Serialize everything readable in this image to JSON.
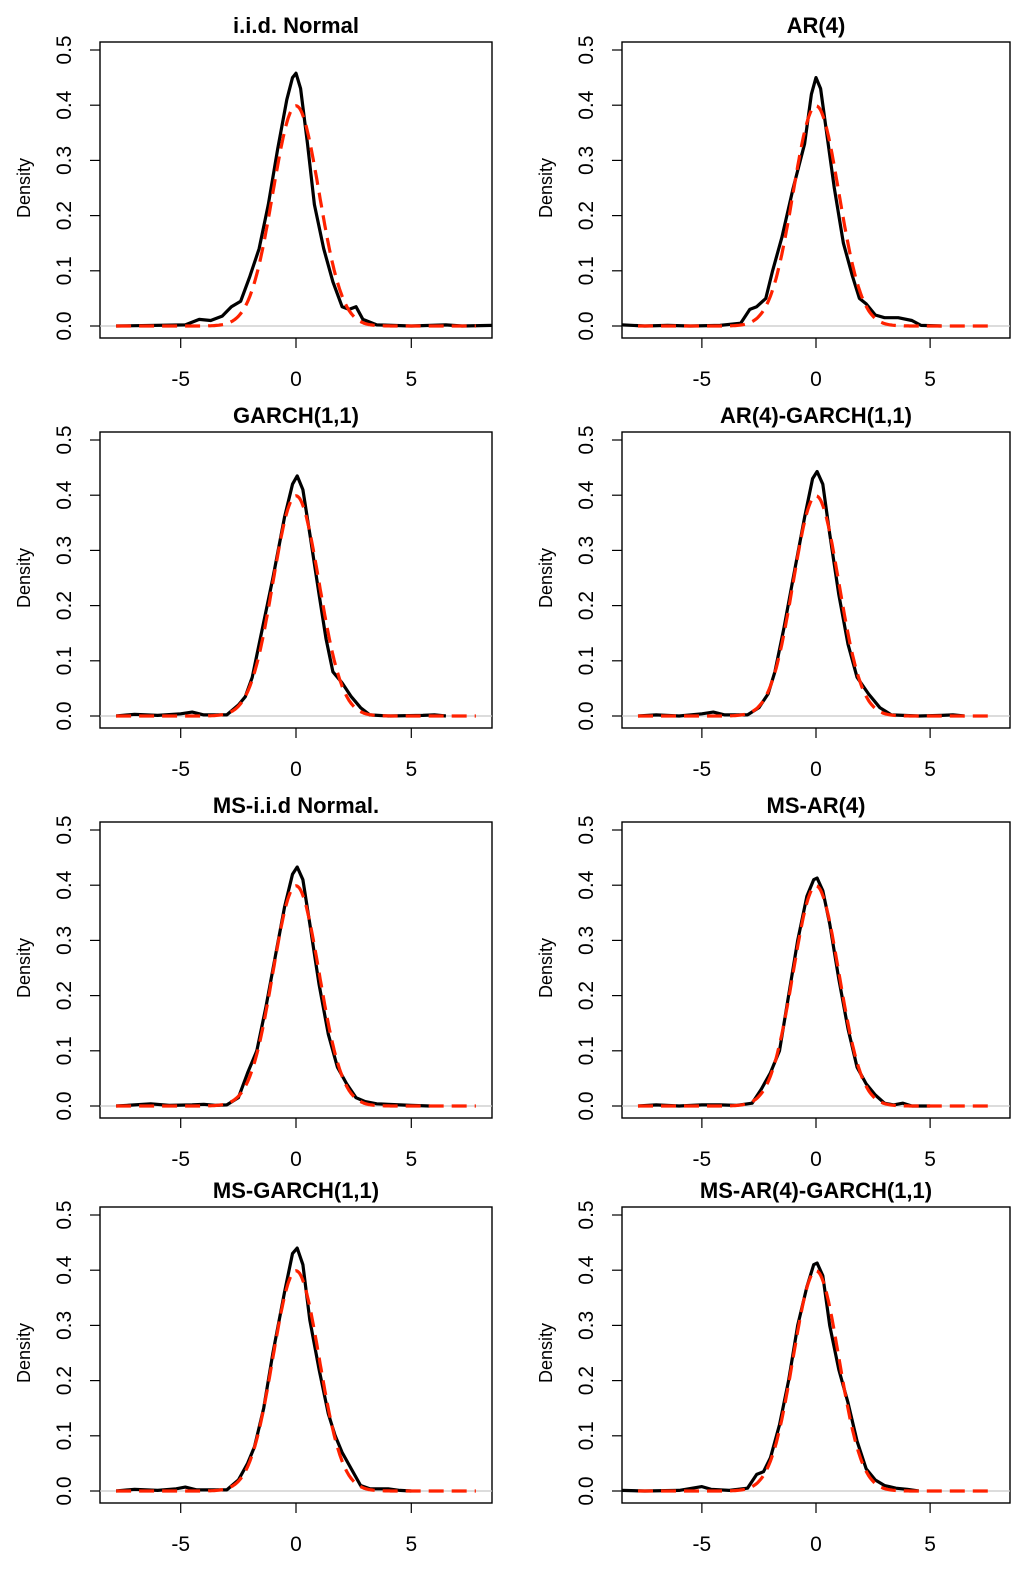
{
  "colors": {
    "kde": "#000000",
    "normal": "#ff2200",
    "zero_line": "#c8c8c8"
  },
  "chart_data": [
    {
      "type": "line",
      "title": "i.i.d. Normal",
      "ylabel": "Density",
      "xlabel": "",
      "xlim": [
        -8.5,
        8.5
      ],
      "ylim": [
        0,
        0.5
      ],
      "xticks": [
        "-5",
        "0",
        "5"
      ],
      "yticks": [
        "0.0",
        "0.1",
        "0.2",
        "0.3",
        "0.4",
        "0.5"
      ],
      "peak": 0.458,
      "series": [
        {
          "role": "kde",
          "points": [
            [
              -7.8,
              0
            ],
            [
              -4.8,
              0.002
            ],
            [
              -4.2,
              0.012
            ],
            [
              -3.7,
              0.01
            ],
            [
              -3.2,
              0.018
            ],
            [
              -2.8,
              0.035
            ],
            [
              -2.4,
              0.045
            ],
            [
              -2.0,
              0.09
            ],
            [
              -1.6,
              0.14
            ],
            [
              -1.2,
              0.22
            ],
            [
              -0.8,
              0.32
            ],
            [
              -0.4,
              0.41
            ],
            [
              -0.15,
              0.45
            ],
            [
              0,
              0.458
            ],
            [
              0.2,
              0.43
            ],
            [
              0.5,
              0.33
            ],
            [
              0.8,
              0.22
            ],
            [
              1.2,
              0.14
            ],
            [
              1.6,
              0.08
            ],
            [
              2.0,
              0.035
            ],
            [
              2.3,
              0.03
            ],
            [
              2.6,
              0.035
            ],
            [
              2.9,
              0.012
            ],
            [
              3.5,
              0.002
            ],
            [
              5.0,
              0
            ],
            [
              6.5,
              0.002
            ],
            [
              7.2,
              0
            ],
            [
              8.5,
              0.001
            ]
          ]
        },
        {
          "role": "normal_reference",
          "mean": 0,
          "sd": 1
        }
      ]
    },
    {
      "type": "line",
      "title": "AR(4)",
      "ylabel": "Density",
      "xlabel": "",
      "xlim": [
        -8.5,
        8.5
      ],
      "ylim": [
        0,
        0.5
      ],
      "xticks": [
        "-5",
        "0",
        "5"
      ],
      "yticks": [
        "0.0",
        "0.1",
        "0.2",
        "0.3",
        "0.4",
        "0.5"
      ],
      "peak": 0.45,
      "series": [
        {
          "role": "kde",
          "points": [
            [
              -8.5,
              0.002
            ],
            [
              -7.5,
              0
            ],
            [
              -6.5,
              0.001
            ],
            [
              -5.5,
              0
            ],
            [
              -4.2,
              0.001
            ],
            [
              -3.3,
              0.005
            ],
            [
              -2.9,
              0.03
            ],
            [
              -2.6,
              0.035
            ],
            [
              -2.2,
              0.05
            ],
            [
              -1.9,
              0.1
            ],
            [
              -1.5,
              0.16
            ],
            [
              -1.0,
              0.25
            ],
            [
              -0.5,
              0.33
            ],
            [
              -0.2,
              0.42
            ],
            [
              0,
              0.45
            ],
            [
              0.2,
              0.43
            ],
            [
              0.5,
              0.34
            ],
            [
              0.8,
              0.25
            ],
            [
              1.2,
              0.15
            ],
            [
              1.6,
              0.09
            ],
            [
              1.9,
              0.05
            ],
            [
              2.2,
              0.04
            ],
            [
              2.6,
              0.02
            ],
            [
              3.0,
              0.015
            ],
            [
              3.6,
              0.015
            ],
            [
              4.2,
              0.01
            ],
            [
              4.6,
              0.001
            ],
            [
              5.5,
              0
            ]
          ]
        },
        {
          "role": "normal_reference",
          "mean": 0,
          "sd": 1
        }
      ]
    },
    {
      "type": "line",
      "title": "GARCH(1,1)",
      "ylabel": "Density",
      "xlabel": "",
      "xlim": [
        -8.5,
        8.5
      ],
      "ylim": [
        0,
        0.5
      ],
      "xticks": [
        "-5",
        "0",
        "5"
      ],
      "yticks": [
        "0.0",
        "0.1",
        "0.2",
        "0.3",
        "0.4",
        "0.5"
      ],
      "peak": 0.435,
      "series": [
        {
          "role": "kde",
          "points": [
            [
              -7.8,
              0
            ],
            [
              -7.0,
              0.003
            ],
            [
              -6.0,
              0.001
            ],
            [
              -5.0,
              0.004
            ],
            [
              -4.5,
              0.007
            ],
            [
              -4.0,
              0.002
            ],
            [
              -3.0,
              0.002
            ],
            [
              -2.5,
              0.02
            ],
            [
              -2.2,
              0.035
            ],
            [
              -1.9,
              0.07
            ],
            [
              -1.5,
              0.15
            ],
            [
              -1.0,
              0.25
            ],
            [
              -0.5,
              0.36
            ],
            [
              -0.15,
              0.42
            ],
            [
              0.05,
              0.435
            ],
            [
              0.3,
              0.41
            ],
            [
              0.6,
              0.33
            ],
            [
              1.0,
              0.22
            ],
            [
              1.3,
              0.14
            ],
            [
              1.6,
              0.08
            ],
            [
              2.0,
              0.06
            ],
            [
              2.4,
              0.035
            ],
            [
              2.8,
              0.015
            ],
            [
              3.2,
              0.002
            ],
            [
              4.0,
              0
            ],
            [
              5.5,
              0.001
            ],
            [
              6.0,
              0.002
            ],
            [
              6.5,
              0
            ]
          ]
        },
        {
          "role": "normal_reference",
          "mean": 0,
          "sd": 1
        }
      ]
    },
    {
      "type": "line",
      "title": "AR(4)-GARCH(1,1)",
      "ylabel": "Density",
      "xlabel": "",
      "xlim": [
        -8.5,
        8.5
      ],
      "ylim": [
        0,
        0.5
      ],
      "xticks": [
        "-5",
        "0",
        "5"
      ],
      "yticks": [
        "0.0",
        "0.1",
        "0.2",
        "0.3",
        "0.4",
        "0.5"
      ],
      "peak": 0.443,
      "series": [
        {
          "role": "kde",
          "points": [
            [
              -7.8,
              0
            ],
            [
              -7.0,
              0.002
            ],
            [
              -6.0,
              0
            ],
            [
              -5.0,
              0.004
            ],
            [
              -4.5,
              0.007
            ],
            [
              -4.0,
              0.002
            ],
            [
              -3.0,
              0.002
            ],
            [
              -2.5,
              0.015
            ],
            [
              -2.1,
              0.04
            ],
            [
              -1.8,
              0.08
            ],
            [
              -1.4,
              0.16
            ],
            [
              -1.0,
              0.25
            ],
            [
              -0.5,
              0.36
            ],
            [
              -0.15,
              0.43
            ],
            [
              0.05,
              0.443
            ],
            [
              0.3,
              0.42
            ],
            [
              0.6,
              0.33
            ],
            [
              1.0,
              0.22
            ],
            [
              1.4,
              0.13
            ],
            [
              1.8,
              0.07
            ],
            [
              2.3,
              0.04
            ],
            [
              2.8,
              0.015
            ],
            [
              3.3,
              0.002
            ],
            [
              4.5,
              0
            ],
            [
              5.5,
              0.001
            ],
            [
              6.0,
              0.002
            ],
            [
              6.5,
              0
            ]
          ]
        },
        {
          "role": "normal_reference",
          "mean": 0,
          "sd": 1
        }
      ]
    },
    {
      "type": "line",
      "title": "MS-i.i.d Normal.",
      "ylabel": "Density",
      "xlabel": "",
      "xlim": [
        -8.5,
        8.5
      ],
      "ylim": [
        0,
        0.5
      ],
      "xticks": [
        "-5",
        "0",
        "5"
      ],
      "yticks": [
        "0.0",
        "0.1",
        "0.2",
        "0.3",
        "0.4",
        "0.5"
      ],
      "peak": 0.433,
      "series": [
        {
          "role": "kde",
          "points": [
            [
              -7.8,
              0
            ],
            [
              -7.0,
              0.002
            ],
            [
              -6.3,
              0.004
            ],
            [
              -5.5,
              0.001
            ],
            [
              -4.5,
              0.002
            ],
            [
              -4.0,
              0.003
            ],
            [
              -3.5,
              0.001
            ],
            [
              -3.0,
              0.002
            ],
            [
              -2.5,
              0.015
            ],
            [
              -2.1,
              0.06
            ],
            [
              -1.7,
              0.1
            ],
            [
              -1.3,
              0.18
            ],
            [
              -0.9,
              0.27
            ],
            [
              -0.5,
              0.36
            ],
            [
              -0.15,
              0.42
            ],
            [
              0.05,
              0.433
            ],
            [
              0.3,
              0.41
            ],
            [
              0.6,
              0.33
            ],
            [
              1.0,
              0.22
            ],
            [
              1.4,
              0.13
            ],
            [
              1.8,
              0.07
            ],
            [
              2.2,
              0.04
            ],
            [
              2.6,
              0.015
            ],
            [
              3.0,
              0.008
            ],
            [
              3.5,
              0.004
            ],
            [
              4.0,
              0.003
            ],
            [
              4.5,
              0.002
            ],
            [
              5.0,
              0.001
            ],
            [
              5.8,
              0
            ]
          ]
        },
        {
          "role": "normal_reference",
          "mean": 0,
          "sd": 1
        }
      ]
    },
    {
      "type": "line",
      "title": "MS-AR(4)",
      "ylabel": "Density",
      "xlabel": "",
      "xlim": [
        -8.5,
        8.5
      ],
      "ylim": [
        0,
        0.5
      ],
      "xticks": [
        "-5",
        "0",
        "5"
      ],
      "yticks": [
        "0.0",
        "0.1",
        "0.2",
        "0.3",
        "0.4",
        "0.5"
      ],
      "peak": 0.413,
      "series": [
        {
          "role": "kde",
          "points": [
            [
              -7.8,
              0
            ],
            [
              -7.0,
              0.002
            ],
            [
              -6.0,
              0
            ],
            [
              -5.0,
              0.002
            ],
            [
              -4.2,
              0.002
            ],
            [
              -3.5,
              0.001
            ],
            [
              -2.8,
              0.005
            ],
            [
              -2.4,
              0.03
            ],
            [
              -2.0,
              0.06
            ],
            [
              -1.6,
              0.1
            ],
            [
              -1.2,
              0.2
            ],
            [
              -0.8,
              0.3
            ],
            [
              -0.4,
              0.38
            ],
            [
              -0.1,
              0.41
            ],
            [
              0.05,
              0.413
            ],
            [
              0.3,
              0.39
            ],
            [
              0.6,
              0.33
            ],
            [
              1.0,
              0.23
            ],
            [
              1.4,
              0.14
            ],
            [
              1.8,
              0.07
            ],
            [
              2.2,
              0.04
            ],
            [
              2.6,
              0.02
            ],
            [
              3.0,
              0.005
            ],
            [
              3.4,
              0.002
            ],
            [
              3.8,
              0.005
            ],
            [
              4.2,
              0
            ],
            [
              5.0,
              0
            ]
          ]
        },
        {
          "role": "normal_reference",
          "mean": 0,
          "sd": 1
        }
      ]
    },
    {
      "type": "line",
      "title": "MS-GARCH(1,1)",
      "ylabel": "Density",
      "xlabel": "",
      "xlim": [
        -8.5,
        8.5
      ],
      "ylim": [
        0,
        0.5
      ],
      "xticks": [
        "-5",
        "0",
        "5"
      ],
      "yticks": [
        "0.0",
        "0.1",
        "0.2",
        "0.3",
        "0.4",
        "0.5"
      ],
      "peak": 0.44,
      "series": [
        {
          "role": "kde",
          "points": [
            [
              -7.8,
              0
            ],
            [
              -7.0,
              0.003
            ],
            [
              -6.0,
              0.001
            ],
            [
              -5.2,
              0.004
            ],
            [
              -4.8,
              0.007
            ],
            [
              -4.3,
              0.002
            ],
            [
              -3.0,
              0.002
            ],
            [
              -2.5,
              0.02
            ],
            [
              -2.1,
              0.05
            ],
            [
              -1.8,
              0.08
            ],
            [
              -1.4,
              0.15
            ],
            [
              -1.0,
              0.25
            ],
            [
              -0.5,
              0.36
            ],
            [
              -0.15,
              0.43
            ],
            [
              0.05,
              0.44
            ],
            [
              0.3,
              0.41
            ],
            [
              0.6,
              0.31
            ],
            [
              1.0,
              0.22
            ],
            [
              1.4,
              0.14
            ],
            [
              1.7,
              0.1
            ],
            [
              2.0,
              0.07
            ],
            [
              2.4,
              0.04
            ],
            [
              2.8,
              0.01
            ],
            [
              3.2,
              0.004
            ],
            [
              4.0,
              0.004
            ],
            [
              4.5,
              0.001
            ],
            [
              5.0,
              0
            ]
          ]
        },
        {
          "role": "normal_reference",
          "mean": 0,
          "sd": 1
        }
      ]
    },
    {
      "type": "line",
      "title": "MS-AR(4)-GARCH(1,1)",
      "ylabel": "Density",
      "xlabel": "",
      "xlim": [
        -8.5,
        8.5
      ],
      "ylim": [
        0,
        0.5
      ],
      "xticks": [
        "-5",
        "0",
        "5"
      ],
      "yticks": [
        "0.0",
        "0.1",
        "0.2",
        "0.3",
        "0.4",
        "0.5"
      ],
      "peak": 0.413,
      "series": [
        {
          "role": "kde",
          "points": [
            [
              -8.5,
              0.001
            ],
            [
              -7.5,
              0
            ],
            [
              -6.0,
              0.001
            ],
            [
              -5.0,
              0.008
            ],
            [
              -4.6,
              0.003
            ],
            [
              -3.8,
              0.001
            ],
            [
              -3.0,
              0.005
            ],
            [
              -2.6,
              0.03
            ],
            [
              -2.3,
              0.035
            ],
            [
              -2.0,
              0.06
            ],
            [
              -1.6,
              0.12
            ],
            [
              -1.2,
              0.2
            ],
            [
              -0.8,
              0.3
            ],
            [
              -0.4,
              0.37
            ],
            [
              -0.1,
              0.41
            ],
            [
              0.05,
              0.413
            ],
            [
              0.3,
              0.39
            ],
            [
              0.6,
              0.3
            ],
            [
              1.0,
              0.22
            ],
            [
              1.4,
              0.16
            ],
            [
              1.8,
              0.09
            ],
            [
              2.2,
              0.04
            ],
            [
              2.6,
              0.02
            ],
            [
              3.0,
              0.01
            ],
            [
              3.5,
              0.005
            ],
            [
              4.0,
              0.003
            ],
            [
              4.5,
              0
            ]
          ]
        },
        {
          "role": "normal_reference",
          "mean": 0,
          "sd": 1
        }
      ]
    }
  ]
}
